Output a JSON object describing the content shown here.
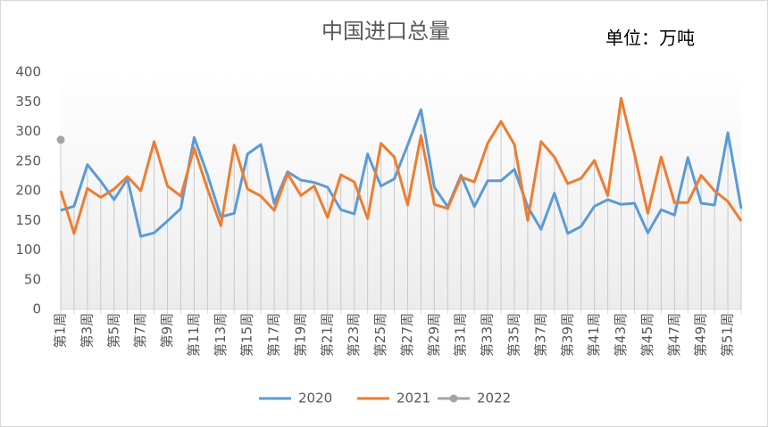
{
  "chart_data": {
    "type": "line",
    "title": "中国进口总量",
    "unit_label": "单位：万吨",
    "categories": [
      "第1周",
      null,
      "第3周",
      null,
      "第5周",
      null,
      "第7周",
      null,
      "第9周",
      null,
      "第11周",
      null,
      "第13周",
      null,
      "第15周",
      null,
      "第17周",
      null,
      "第19周",
      null,
      "第21周",
      null,
      "第23周",
      null,
      "第25周",
      null,
      "第27周",
      null,
      "第29周",
      null,
      "第31周",
      null,
      "第33周",
      null,
      "第35周",
      null,
      "第37周",
      null,
      "第39周",
      null,
      "第41周",
      null,
      "第43周",
      null,
      "第45周",
      null,
      "第47周",
      null,
      "第49周",
      null,
      "第51周",
      null
    ],
    "series": [
      {
        "name": "2020",
        "color": "#5b9bd5",
        "values": [
          167,
          174,
          244,
          216,
          185,
          220,
          123,
          129,
          149,
          170,
          290,
          227,
          156,
          162,
          262,
          278,
          179,
          232,
          218,
          214,
          206,
          168,
          161,
          262,
          208,
          220,
          277,
          337,
          206,
          173,
          226,
          173,
          217,
          217,
          236,
          173,
          135,
          196,
          128,
          140,
          174,
          185,
          177,
          179,
          129,
          168,
          159,
          256,
          179,
          176,
          298,
          170
        ]
      },
      {
        "name": "2021",
        "color": "#ed7d31",
        "values": [
          200,
          128,
          204,
          189,
          203,
          224,
          200,
          283,
          208,
          191,
          272,
          203,
          141,
          277,
          203,
          191,
          167,
          229,
          192,
          208,
          155,
          227,
          215,
          153,
          280,
          257,
          176,
          293,
          177,
          170,
          223,
          215,
          280,
          317,
          278,
          150,
          283,
          257,
          212,
          221,
          251,
          192,
          356,
          262,
          162,
          257,
          180,
          180,
          226,
          200,
          182,
          149
        ]
      },
      {
        "name": "2022",
        "color": "#a5a5a5",
        "marker": true,
        "values": [
          286,
          null,
          null,
          null,
          null,
          null,
          null,
          null,
          null,
          null,
          null,
          null,
          null,
          null,
          null,
          null,
          null,
          null,
          null,
          null,
          null,
          null,
          null,
          null,
          null,
          null,
          null,
          null,
          null,
          null,
          null,
          null,
          null,
          null,
          null,
          null,
          null,
          null,
          null,
          null,
          null,
          null,
          null,
          null,
          null,
          null,
          null,
          null,
          null,
          null,
          null,
          null
        ]
      }
    ],
    "ylim": [
      0,
      400
    ],
    "yticks": [
      0,
      50,
      100,
      150,
      200,
      250,
      300,
      350,
      400
    ],
    "grid": false,
    "drop_lines": true,
    "legend": "bottom"
  }
}
